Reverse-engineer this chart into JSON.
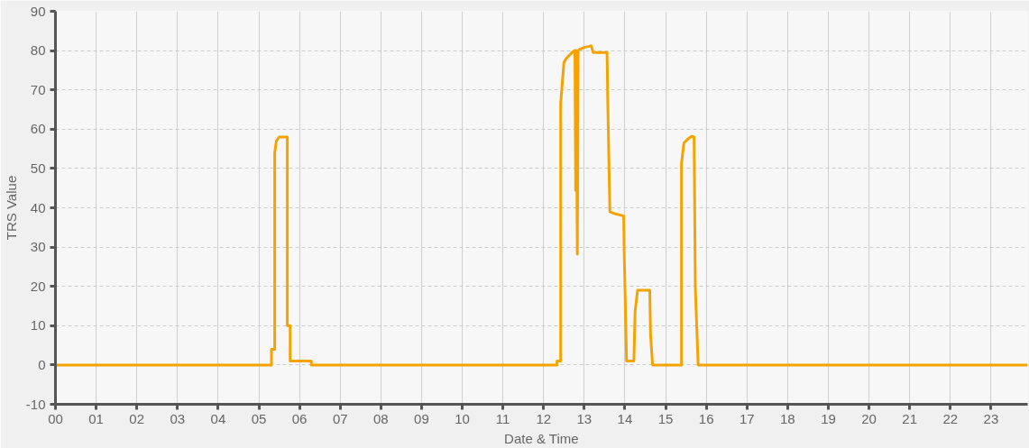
{
  "chart_data": {
    "type": "line",
    "xlabel": "Date & Time",
    "ylabel": "TRS Value",
    "xlim": [
      0,
      23.9
    ],
    "ylim": [
      -10,
      90
    ],
    "xticks": [
      {
        "value": 0,
        "label": "00"
      },
      {
        "value": 1,
        "label": "01"
      },
      {
        "value": 2,
        "label": "02"
      },
      {
        "value": 3,
        "label": "03"
      },
      {
        "value": 4,
        "label": "04"
      },
      {
        "value": 5,
        "label": "05"
      },
      {
        "value": 6,
        "label": "06"
      },
      {
        "value": 7,
        "label": "07"
      },
      {
        "value": 8,
        "label": "08"
      },
      {
        "value": 9,
        "label": "09"
      },
      {
        "value": 10,
        "label": "10"
      },
      {
        "value": 11,
        "label": "11"
      },
      {
        "value": 12,
        "label": "12"
      },
      {
        "value": 13,
        "label": "13"
      },
      {
        "value": 14,
        "label": "14"
      },
      {
        "value": 15,
        "label": "15"
      },
      {
        "value": 16,
        "label": "16"
      },
      {
        "value": 17,
        "label": "17"
      },
      {
        "value": 18,
        "label": "18"
      },
      {
        "value": 19,
        "label": "19"
      },
      {
        "value": 20,
        "label": "20"
      },
      {
        "value": 21,
        "label": "21"
      },
      {
        "value": 22,
        "label": "22"
      },
      {
        "value": 23,
        "label": "23"
      }
    ],
    "yticks": [
      -10,
      0,
      10,
      20,
      30,
      40,
      50,
      60,
      70,
      80,
      90
    ],
    "grid": true,
    "line_style": "solid",
    "marker": "none",
    "series": [
      {
        "color": "#f5a300",
        "x": [
          0,
          5.31,
          5.31,
          5.39,
          5.39,
          5.43,
          5.5,
          5.58,
          5.66,
          5.7,
          5.7,
          5.77,
          5.77,
          6.29,
          6.29,
          11.88,
          12.2,
          12.33,
          12.33,
          12.42,
          12.42,
          12.5,
          12.56,
          12.71,
          12.77,
          12.79,
          12.8,
          12.83,
          12.85,
          12.88,
          13.0,
          13.17,
          13.22,
          13.56,
          13.58,
          13.63,
          13.75,
          13.97,
          13.98,
          14.04,
          14.22,
          14.25,
          14.31,
          14.61,
          14.63,
          14.68,
          15.16,
          15.39,
          15.39,
          15.45,
          15.55,
          15.64,
          15.7,
          15.73,
          15.8,
          23.9
        ],
        "values": [
          0,
          0,
          4,
          4,
          54,
          57,
          58,
          58,
          58,
          58,
          10,
          10,
          1,
          1,
          0,
          0,
          0,
          0,
          1,
          1,
          66.5,
          77,
          78,
          79.6,
          80,
          44.4,
          80,
          28.2,
          80,
          80.3,
          80.8,
          81.2,
          79.5,
          79.5,
          65.6,
          39,
          38.5,
          37.9,
          29.7,
          1,
          1,
          13.6,
          19,
          19,
          7.5,
          0,
          0,
          0,
          51.3,
          56.5,
          57.5,
          58.2,
          58,
          19.8,
          0,
          0
        ]
      }
    ]
  }
}
